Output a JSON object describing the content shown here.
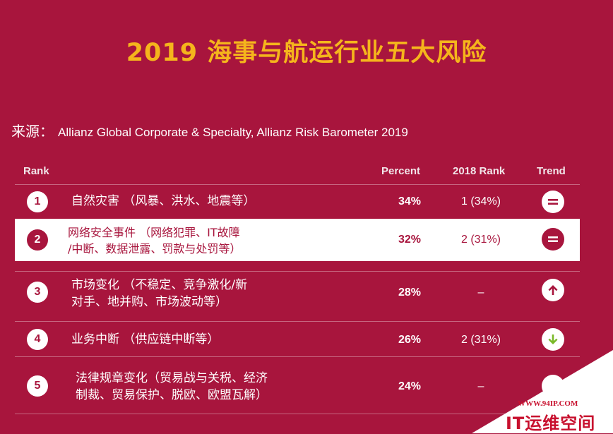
{
  "title": "2019 海事与航运行业五大风险",
  "source": {
    "label": "来源：",
    "text": "Allianz Global Corporate & Specialty, Allianz Risk Barometer 2019"
  },
  "headers": {
    "rank": "Rank",
    "percent": "Percent",
    "rank_2018": "2018 Rank",
    "trend": "Trend"
  },
  "rows": [
    {
      "rank": "1",
      "line1": "自然灾害 （风暴、洪水、地震等）",
      "line2": "",
      "percent": "34%",
      "rank_2018": "1 (34%)",
      "trend": "equal"
    },
    {
      "rank": "2",
      "line1": "网络安全事件 （网络犯罪、IT故障",
      "line2": "/中断、数据泄露、罚款与处罚等）",
      "percent": "32%",
      "rank_2018": "2 (31%)",
      "trend": "equal"
    },
    {
      "rank": "3",
      "line1": "市场变化 （不稳定、竞争激化/新",
      "line2": "对手、地并购、市场波动等）",
      "percent": "28%",
      "rank_2018": "–",
      "trend": "up"
    },
    {
      "rank": "4",
      "line1": "业务中断 （供应链中断等）",
      "line2": "",
      "percent": "26%",
      "rank_2018": "2 (31%)",
      "trend": "down"
    },
    {
      "rank": "5",
      "line1": "法律规章变化（贸易战与关税、经济",
      "line2": "制裁、贸易保护、脱欧、欧盟瓦解）",
      "percent": "24%",
      "rank_2018": "–",
      "trend": "new"
    }
  ],
  "colors": {
    "background": "#a8153d",
    "title": "#f5b51c",
    "up": "#a8153d",
    "down": "#7ab929",
    "watermark": "#c8102e"
  },
  "icons": {
    "equal": "equals-icon",
    "up": "arrow-up-icon",
    "down": "arrow-down-icon"
  },
  "watermark": {
    "url": "WWW.94IP.COM",
    "name": "IT运维空间"
  }
}
